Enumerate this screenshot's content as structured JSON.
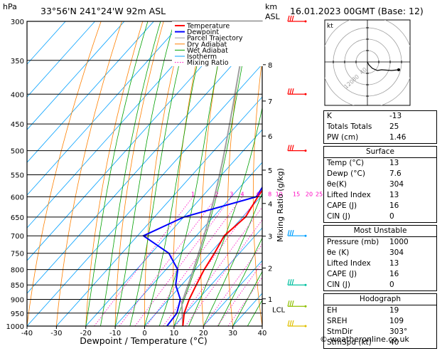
{
  "header": {
    "hpa_label": "hPa",
    "location": "33°56'N  241°24'W  92m  ASL",
    "km_label": "km",
    "asl_label": "ASL",
    "datetime": "16.01.2023  00GMT  (Base: 12)"
  },
  "chart_data": {
    "type": "line",
    "title": "",
    "xlabel": "Dewpoint / Temperature (°C)",
    "ylabel": "hPa",
    "xlim": [
      -40,
      40
    ],
    "ylim": [
      1000,
      300
    ],
    "pressure_ticks": [
      300,
      350,
      400,
      450,
      500,
      550,
      600,
      650,
      700,
      750,
      800,
      850,
      900,
      950,
      1000
    ],
    "temp_ticks": [
      -40,
      -30,
      -20,
      -10,
      0,
      10,
      20,
      30,
      40
    ],
    "km_ticks": [
      {
        "label": "8",
        "p": 356
      },
      {
        "label": "7",
        "p": 411
      },
      {
        "label": "6",
        "p": 472
      },
      {
        "label": "5",
        "p": 540
      },
      {
        "label": "4",
        "p": 616
      },
      {
        "label": "3",
        "p": 701
      },
      {
        "label": "2",
        "p": 795
      },
      {
        "label": "1",
        "p": 898
      }
    ],
    "lcl": {
      "label": "LCL",
      "p": 915
    },
    "mixing_ratio_label": "Mixing Ratio (g/kg)",
    "mixing_ratio_values": [
      "1",
      "2",
      "3",
      "4",
      "6",
      "8",
      "10",
      "15",
      "20",
      "25"
    ],
    "series": [
      {
        "name": "Temperature",
        "color": "#ff0000",
        "points": [
          [
            1000,
            13
          ],
          [
            950,
            9.5
          ],
          [
            900,
            7
          ],
          [
            850,
            5
          ],
          [
            800,
            3
          ],
          [
            750,
            1.5
          ],
          [
            700,
            -0.5
          ],
          [
            650,
            1
          ],
          [
            600,
            -1
          ],
          [
            550,
            -2.5
          ],
          [
            500,
            -6.5
          ],
          [
            450,
            -11
          ],
          [
            400,
            -15.5
          ],
          [
            350,
            -22
          ],
          [
            300,
            -30
          ]
        ]
      },
      {
        "name": "Dewpoint",
        "color": "#0000ff",
        "points": [
          [
            1000,
            7.6
          ],
          [
            950,
            7
          ],
          [
            900,
            4
          ],
          [
            850,
            -2
          ],
          [
            800,
            -6
          ],
          [
            750,
            -14
          ],
          [
            700,
            -28
          ],
          [
            650,
            -20
          ],
          [
            600,
            -1.5
          ],
          [
            550,
            -3.5
          ],
          [
            500,
            -7
          ],
          [
            450,
            -15
          ],
          [
            400,
            -21
          ],
          [
            350,
            -30
          ],
          [
            300,
            -39
          ]
        ]
      },
      {
        "name": "Parcel Trajectory",
        "color": "#a0a0a0"
      },
      {
        "name": "Dry Adiabat",
        "color": "#ff8000"
      },
      {
        "name": "Wet Adiabat",
        "color": "#00a000"
      },
      {
        "name": "Isotherm",
        "color": "#00a0ff"
      },
      {
        "name": "Mixing Ratio",
        "color": "#ff00c0"
      }
    ]
  },
  "hodograph": {
    "label": "kt",
    "ring_labels": [
      "40",
      "80",
      "120"
    ],
    "trace": [
      [
        0,
        0
      ],
      [
        2,
        -4
      ],
      [
        7,
        -9
      ],
      [
        14,
        -12
      ],
      [
        20,
        -11
      ],
      [
        34,
        -12
      ],
      [
        44,
        -11
      ]
    ]
  },
  "indices": {
    "rows": [
      {
        "k": "K",
        "v": "-13"
      },
      {
        "k": "Totals Totals",
        "v": "25"
      },
      {
        "k": "PW (cm)",
        "v": "1.46"
      }
    ]
  },
  "surface": {
    "title": "Surface",
    "rows": [
      {
        "k": "Temp (°C)",
        "v": "13"
      },
      {
        "k": "Dewp (°C)",
        "v": "7.6"
      },
      {
        "k": "θe(K)",
        "v": "304"
      },
      {
        "k": "Lifted Index",
        "v": "13"
      },
      {
        "k": "CAPE (J)",
        "v": "16"
      },
      {
        "k": "CIN (J)",
        "v": "0"
      }
    ]
  },
  "most_unstable": {
    "title": "Most Unstable",
    "rows": [
      {
        "k": "Pressure (mb)",
        "v": "1000"
      },
      {
        "k": "θe (K)",
        "v": "304"
      },
      {
        "k": "Lifted Index",
        "v": "13"
      },
      {
        "k": "CAPE (J)",
        "v": "16"
      },
      {
        "k": "CIN (J)",
        "v": "0"
      }
    ]
  },
  "hodograph_stats": {
    "title": "Hodograph",
    "rows": [
      {
        "k": "EH",
        "v": "19"
      },
      {
        "k": "SREH",
        "v": "109"
      },
      {
        "k": "StmDir",
        "v": "303°"
      },
      {
        "k": "StmSpd (kt)",
        "v": "40"
      }
    ]
  },
  "wind_barbs": [
    {
      "p": 300,
      "color": "#ff0000"
    },
    {
      "p": 400,
      "color": "#ff0000"
    },
    {
      "p": 500,
      "color": "#ff0000"
    },
    {
      "p": 700,
      "color": "#00a0ff"
    },
    {
      "p": 850,
      "color": "#00c0a0"
    },
    {
      "p": 925,
      "color": "#90c000"
    },
    {
      "p": 1000,
      "color": "#e0c000"
    }
  ],
  "copyright": "© weatheronline.co.uk"
}
